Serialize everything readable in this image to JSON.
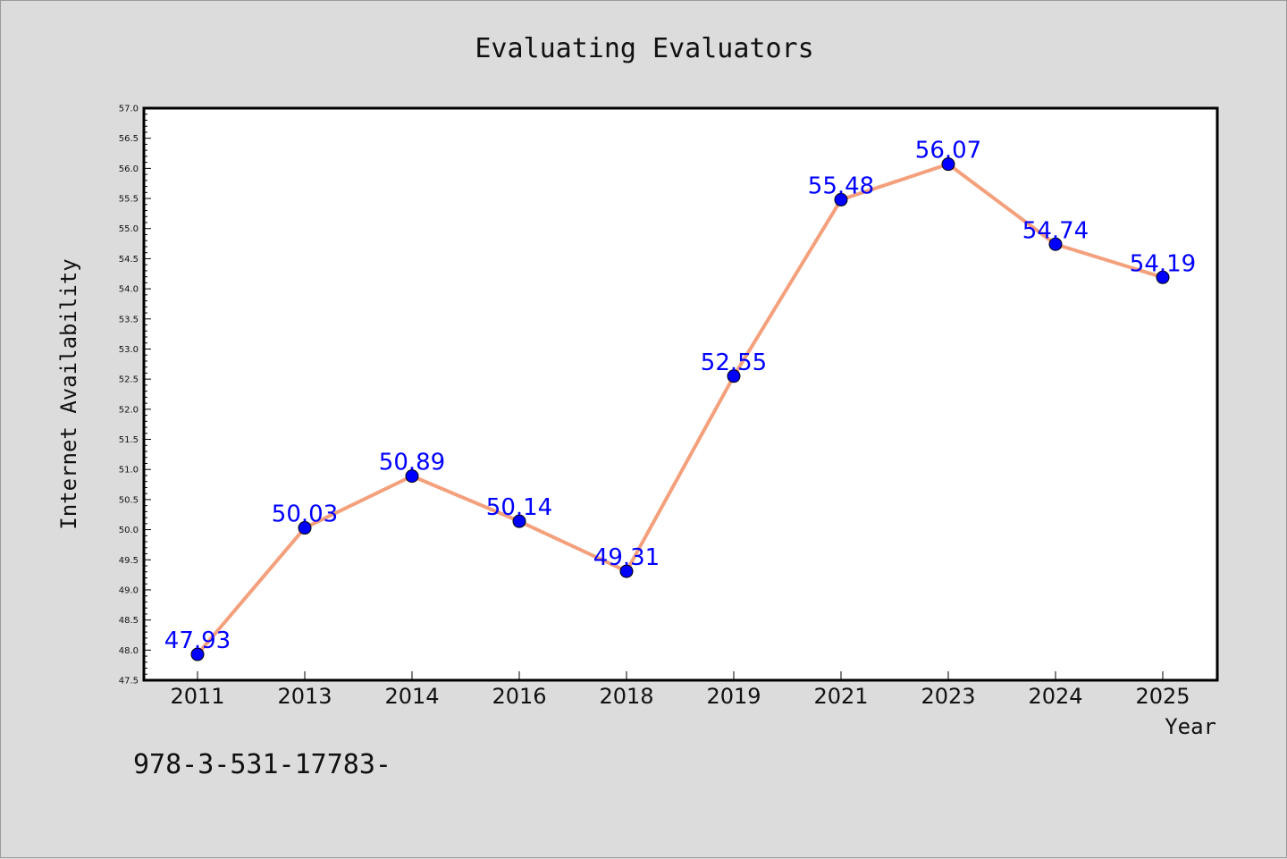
{
  "chart_data": {
    "type": "line",
    "title": "Evaluating Evaluators",
    "xlabel": "Year",
    "ylabel": "Internet Availability",
    "categories": [
      "2011",
      "2013",
      "2014",
      "2016",
      "2018",
      "2019",
      "2021",
      "2023",
      "2024",
      "2025"
    ],
    "series": [
      {
        "values": [
          47.93,
          50.03,
          50.89,
          50.14,
          49.31,
          52.55,
          55.48,
          56.07,
          54.74,
          54.19
        ],
        "line_color": "#f4a07c",
        "marker_color": "#0000ff",
        "label_color": "#0000ff"
      }
    ],
    "ylim": [
      47.5,
      57.0
    ],
    "ytick_step": 0.5,
    "grid": false,
    "legend": "none"
  },
  "footer": {
    "text": "978-3-531-17783-"
  },
  "colors": {
    "background": "#dcdcdc",
    "plot_background": "#ffffff",
    "axis": "#000000"
  }
}
